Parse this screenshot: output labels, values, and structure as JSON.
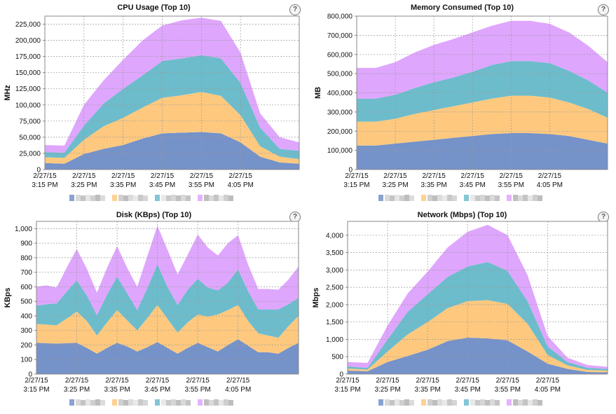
{
  "help_glyph": "?",
  "colors": [
    "#7592c9",
    "#fec97f",
    "#6dbccc",
    "#dfa6fd"
  ],
  "legend_blur_colors": [
    "#d9d9d9",
    "#c4c4c4",
    "#e6e6e6",
    "#cfcfcf",
    "#bdbdbd",
    "#dcdcdc",
    "#e9e9e9",
    "#c9c9c9",
    "#d6d6d6",
    "#bfbfbf"
  ],
  "chart_data": [
    {
      "type": "area",
      "title": "CPU Usage (Top 10)",
      "ylabel": "MHz",
      "xlabel": "",
      "ylim": [
        0,
        237500
      ],
      "yticks": [
        0,
        25000,
        50000,
        75000,
        100000,
        125000,
        150000,
        175000,
        200000,
        225000
      ],
      "ytick_labels": [
        "0",
        "25,000",
        "50,000",
        "75,000",
        "100,000",
        "125,000",
        "150,000",
        "175,000",
        "200,000",
        "225,000"
      ],
      "x": [
        0,
        1,
        2,
        3,
        4,
        5,
        6,
        7,
        8,
        9,
        10,
        11,
        12,
        13
      ],
      "xlim": [
        0,
        13
      ],
      "xticks": [
        0,
        2,
        4,
        6,
        8,
        10
      ],
      "xtick_labels": [
        [
          "2/27/15",
          "3:15 PM"
        ],
        [
          "2/27/15",
          "3:25 PM"
        ],
        [
          "2/27/15",
          "3:35 PM"
        ],
        [
          "2/27/15",
          "3:45 PM"
        ],
        [
          "2/27/15",
          "3:55 PM"
        ],
        [
          "2/27/15",
          "4:05 PM"
        ]
      ],
      "grid": true,
      "stacked": true,
      "series": [
        {
          "values": [
            10000,
            9000,
            24000,
            32000,
            38000,
            48000,
            56000,
            57000,
            58000,
            56000,
            42000,
            20000,
            11000,
            9000
          ]
        },
        {
          "values": [
            9000,
            9000,
            22000,
            35000,
            42000,
            48000,
            55000,
            58000,
            62000,
            58000,
            42000,
            16000,
            9000,
            7000
          ]
        },
        {
          "values": [
            8000,
            8000,
            22000,
            35000,
            45000,
            50000,
            57000,
            57000,
            57000,
            58000,
            50000,
            29000,
            12000,
            13000
          ]
        },
        {
          "values": [
            11000,
            11000,
            32000,
            36000,
            45000,
            54000,
            55000,
            59000,
            58000,
            58000,
            47000,
            22000,
            18000,
            13000
          ]
        }
      ],
      "legend": {
        "position": "bottom",
        "entries": 4
      }
    },
    {
      "type": "area",
      "title": "Memory Consumed (Top 10)",
      "ylabel": "MB",
      "xlabel": "",
      "ylim": [
        0,
        800000
      ],
      "yticks": [
        0,
        100000,
        200000,
        300000,
        400000,
        500000,
        600000,
        700000,
        800000
      ],
      "ytick_labels": [
        "0",
        "100,000",
        "200,000",
        "300,000",
        "400,000",
        "500,000",
        "600,000",
        "700,000",
        "800,000"
      ],
      "x": [
        0,
        1,
        2,
        3,
        4,
        5,
        6,
        7,
        8,
        9,
        10,
        11,
        12,
        13
      ],
      "xlim": [
        0,
        13
      ],
      "xticks": [
        0,
        2,
        4,
        6,
        8,
        10
      ],
      "xtick_labels": [
        [
          "2/27/15",
          "3:15 PM"
        ],
        [
          "2/27/15",
          "3:25 PM"
        ],
        [
          "2/27/15",
          "3:35 PM"
        ],
        [
          "2/27/15",
          "3:45 PM"
        ],
        [
          "2/27/15",
          "3:55 PM"
        ],
        [
          "2/27/15",
          "4:05 PM"
        ]
      ],
      "grid": true,
      "stacked": true,
      "series": [
        {
          "values": [
            125000,
            125000,
            135000,
            145000,
            155000,
            165000,
            175000,
            185000,
            190000,
            190000,
            185000,
            175000,
            155000,
            135000
          ]
        },
        {
          "values": [
            125000,
            125000,
            130000,
            145000,
            155000,
            165000,
            175000,
            185000,
            195000,
            195000,
            190000,
            175000,
            160000,
            135000
          ]
        },
        {
          "values": [
            120000,
            120000,
            125000,
            135000,
            145000,
            150000,
            160000,
            175000,
            180000,
            180000,
            180000,
            165000,
            150000,
            130000
          ]
        },
        {
          "values": [
            160000,
            160000,
            170000,
            185000,
            195000,
            200000,
            205000,
            205000,
            210000,
            210000,
            205000,
            200000,
            180000,
            160000
          ]
        }
      ],
      "legend": {
        "position": "bottom",
        "entries": 4
      }
    },
    {
      "type": "area",
      "title": "Disk (KBps) (Top 10)",
      "ylabel": "KBps",
      "xlabel": "",
      "ylim": [
        0,
        1050
      ],
      "yticks": [
        0,
        100,
        200,
        300,
        400,
        500,
        600,
        700,
        800,
        900,
        1000
      ],
      "ytick_labels": [
        "0",
        "100",
        "200",
        "300",
        "400",
        "500",
        "600",
        "700",
        "800",
        "900",
        "1,000"
      ],
      "x": [
        0,
        1,
        2,
        3,
        4,
        5,
        6,
        7,
        8,
        9,
        10,
        11,
        12,
        13,
        14,
        15,
        16,
        17,
        18,
        19,
        20,
        21,
        22,
        23,
        24,
        25,
        26
      ],
      "xlim": [
        0,
        26
      ],
      "xticks": [
        0,
        4,
        8,
        12,
        16,
        20
      ],
      "xtick_labels": [
        [
          "2/27/15",
          "3:15 PM"
        ],
        [
          "2/27/15",
          "3:25 PM"
        ],
        [
          "2/27/15",
          "3:35 PM"
        ],
        [
          "2/27/15",
          "3:45 PM"
        ],
        [
          "2/27/15",
          "3:55 PM"
        ],
        [
          "2/27/15",
          "4:05 PM"
        ]
      ],
      "grid": true,
      "stacked": true,
      "series": [
        {
          "values": [
            215,
            212,
            210,
            212,
            215,
            180,
            140,
            180,
            215,
            190,
            155,
            185,
            220,
            180,
            140,
            180,
            215,
            185,
            155,
            200,
            240,
            195,
            150,
            150,
            140,
            180,
            215
          ]
        },
        {
          "values": [
            130,
            128,
            125,
            170,
            215,
            185,
            125,
            175,
            225,
            180,
            145,
            200,
            255,
            200,
            145,
            175,
            195,
            210,
            255,
            240,
            235,
            170,
            130,
            115,
            110,
            150,
            185
          ]
        },
        {
          "values": [
            125,
            140,
            150,
            185,
            215,
            175,
            140,
            190,
            230,
            185,
            140,
            205,
            280,
            220,
            190,
            225,
            245,
            200,
            165,
            190,
            245,
            205,
            165,
            180,
            195,
            150,
            125
          ]
        },
        {
          "values": [
            130,
            130,
            110,
            165,
            215,
            185,
            155,
            185,
            210,
            175,
            160,
            220,
            265,
            255,
            210,
            240,
            305,
            275,
            240,
            270,
            235,
            182,
            140,
            140,
            135,
            170,
            215
          ]
        }
      ],
      "legend": {
        "position": "bottom",
        "entries": 4
      }
    },
    {
      "type": "area",
      "title": "Network (Mbps) (Top 10)",
      "ylabel": "Mbps",
      "xlabel": "",
      "ylim": [
        0,
        4400
      ],
      "yticks": [
        0,
        500,
        1000,
        1500,
        2000,
        2500,
        3000,
        3500,
        4000
      ],
      "ytick_labels": [
        "0",
        "500",
        "1,000",
        "1,500",
        "2,000",
        "2,500",
        "3,000",
        "3,500",
        "4,000"
      ],
      "x": [
        0,
        1,
        2,
        3,
        4,
        5,
        6,
        7,
        8,
        9,
        10,
        11,
        12,
        13
      ],
      "xlim": [
        0,
        13
      ],
      "xticks": [
        0,
        2,
        4,
        6,
        8,
        10
      ],
      "xtick_labels": [
        [
          "2/27/15",
          "3:15 PM"
        ],
        [
          "2/27/15",
          "3:25 PM"
        ],
        [
          "2/27/15",
          "3:35 PM"
        ],
        [
          "2/27/15",
          "3:45 PM"
        ],
        [
          "2/27/15",
          "3:55 PM"
        ],
        [
          "2/27/15",
          "4:05 PM"
        ]
      ],
      "grid": true,
      "stacked": true,
      "series": [
        {
          "values": [
            100,
            80,
            350,
            520,
            700,
            950,
            1050,
            1030,
            970,
            650,
            300,
            150,
            60,
            50
          ]
        },
        {
          "values": [
            60,
            50,
            300,
            620,
            800,
            950,
            1050,
            1100,
            1050,
            800,
            250,
            100,
            60,
            50
          ]
        },
        {
          "values": [
            60,
            50,
            350,
            650,
            800,
            900,
            1000,
            1100,
            950,
            650,
            250,
            100,
            60,
            50
          ]
        },
        {
          "values": [
            130,
            140,
            400,
            530,
            650,
            850,
            1000,
            1070,
            1030,
            750,
            300,
            120,
            80,
            60
          ]
        }
      ],
      "legend": {
        "position": "bottom",
        "entries": 4
      }
    }
  ]
}
